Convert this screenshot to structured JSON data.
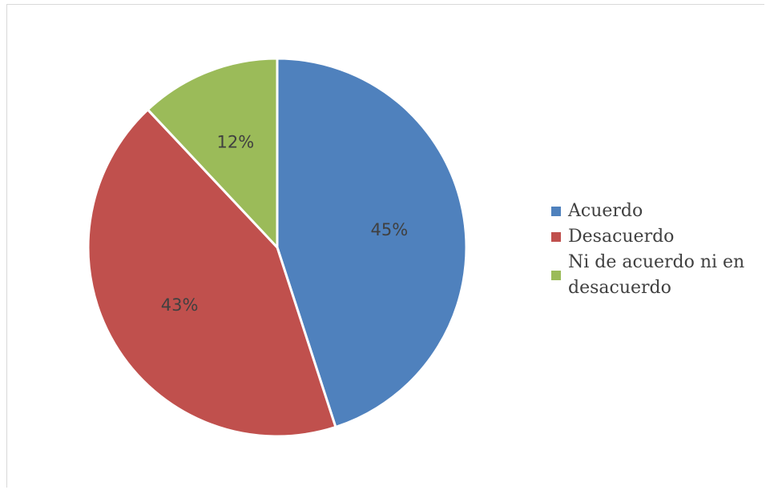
{
  "chart_data": {
    "type": "pie",
    "title": "",
    "categories": [
      "Acuerdo",
      "Desacuerdo",
      "Ni de acuerdo ni en desacuerdo"
    ],
    "values": [
      45,
      43,
      12
    ],
    "data_labels": [
      "45%",
      "43%",
      "12%"
    ],
    "colors": [
      "#4f81bd",
      "#c0504d",
      "#9bbb59"
    ],
    "start_angle": "12 o'clock",
    "direction": "clockwise",
    "legend": {
      "position": "right",
      "entries": [
        "Acuerdo",
        "Desacuerdo",
        "Ni de acuerdo ni en desacuerdo"
      ]
    }
  }
}
